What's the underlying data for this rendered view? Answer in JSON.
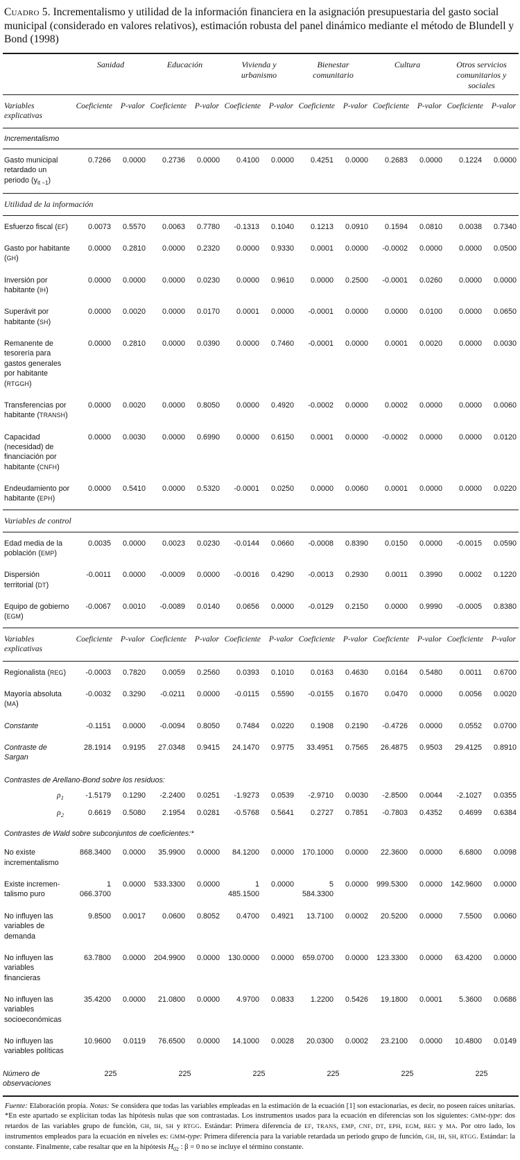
{
  "page": {
    "title_label": "Cuadro 5.",
    "title_text": " Incrementalismo y utilidad de la información financiera en la asignación presupuestaria del gasto social municipal (considerado en valores relativos), estimación robusta del panel dinámico mediante el método de Blundell y Bond (1998)"
  },
  "table": {
    "groups": [
      "Sanidad",
      "Educación",
      "Vivienda y urbanismo",
      "Bienestar comunitario",
      "Cultura",
      "Otros servicios comunitarios y sociales"
    ],
    "col_headers": {
      "stub": "Variables explicativas",
      "coef": "Coeficiente",
      "pval": "P-valor"
    },
    "rows": [
      {
        "type": "section-sans",
        "label": "Incrementalismo"
      },
      {
        "type": "data",
        "label": "Gasto municipal retardado un periodo (y{sub}it −1{/sub})",
        "values": [
          "0.7266",
          "0.0000",
          "0.2736",
          "0.0000",
          "0.4100",
          "0.0000",
          "0.4251",
          "0.0000",
          "0.2683",
          "0.0000",
          "0.1224",
          "0.0000"
        ]
      },
      {
        "type": "section-serif",
        "label": "Utilidad de la información"
      },
      {
        "type": "data",
        "label": "Esfuerzo fiscal ({sc}EF{/sc})",
        "values": [
          "0.0073",
          "0.5570",
          "0.0063",
          "0.7780",
          "-0.1313",
          "0.1040",
          "0.1213",
          "0.0910",
          "0.1594",
          "0.0810",
          "0.0038",
          "0.7340"
        ]
      },
      {
        "type": "data",
        "label": "Gasto por habitante ({sc}GH{/sc})",
        "values": [
          "0.0000",
          "0.2810",
          "0.0000",
          "0.2320",
          "0.0000",
          "0.9330",
          "0.0001",
          "0.0000",
          "-0.0002",
          "0.0000",
          "0.0000",
          "0.0500"
        ]
      },
      {
        "type": "data",
        "label": "Inversión por habitante ({sc}IH{/sc})",
        "values": [
          "0.0000",
          "0.0000",
          "0.0000",
          "0.0230",
          "0.0000",
          "0.9610",
          "0.0000",
          "0.2500",
          "-0.0001",
          "0.0260",
          "0.0000",
          "0.0000"
        ]
      },
      {
        "type": "data",
        "label": "Superávit por habitante ({sc}SH{/sc})",
        "values": [
          "0.0000",
          "0.0020",
          "0.0000",
          "0.0170",
          "0.0001",
          "0.0000",
          "-0.0001",
          "0.0000",
          "0.0000",
          "0.0100",
          "0.0000",
          "0.0650"
        ]
      },
      {
        "type": "data",
        "label": "Remanente de tesorería para gastos generales por habitante ({sc}RTGGH{/sc})",
        "values": [
          "0.0000",
          "0.2810",
          "0.0000",
          "0.0390",
          "0.0000",
          "0.7460",
          "-0.0001",
          "0.0000",
          "0.0001",
          "0.0020",
          "0.0000",
          "0.0030"
        ]
      },
      {
        "type": "data",
        "label": "Transferencias por habitante ({sc}TRANSH{/sc})",
        "values": [
          "0.0000",
          "0.0020",
          "0.0000",
          "0.8050",
          "0.0000",
          "0.4920",
          "-0.0002",
          "0.0000",
          "0.0002",
          "0.0000",
          "0.0000",
          "0.0060"
        ]
      },
      {
        "type": "data",
        "label": "Capacidad (necesidad) de financiación  por habitante ({sc}CNFH{/sc})",
        "values": [
          "0.0000",
          "0.0030",
          "0.0000",
          "0.6990",
          "0.0000",
          "0.6150",
          "0.0001",
          "0.0000",
          "-0.0002",
          "0.0000",
          "0.0000",
          "0.0120"
        ]
      },
      {
        "type": "data",
        "label": "Endeudamiento por habitante ({sc}EPH{/sc})",
        "values": [
          "0.0000",
          "0.5410",
          "0.0000",
          "0.5320",
          "-0.0001",
          "0.0250",
          "0.0000",
          "0.0060",
          "0.0001",
          "0.0000",
          "0.0000",
          "0.0220"
        ]
      },
      {
        "type": "section-serif",
        "label": "Variables de control"
      },
      {
        "type": "data",
        "label": "Edad media de la población ({sc}EMP{/sc})",
        "values": [
          "0.0035",
          "0.0000",
          "0.0023",
          "0.0230",
          "-0.0144",
          "0.0660",
          "-0.0008",
          "0.8390",
          "0.0150",
          "0.0000",
          "-0.0015",
          "0.0590"
        ]
      },
      {
        "type": "data",
        "label": "Dispersión territorial ({sc}DT{/sc})",
        "values": [
          "-0.0011",
          "0.0000",
          "-0.0009",
          "0.0000",
          "-0.0016",
          "0.4290",
          "-0.0013",
          "0.2930",
          "0.0011",
          "0.3990",
          "0.0002",
          "0.1220"
        ]
      },
      {
        "type": "data",
        "label": "Equipo de gobierno ({sc}EGM{/sc})",
        "values": [
          "-0.0067",
          "0.0010",
          "-0.0089",
          "0.0140",
          "0.0656",
          "0.0000",
          "-0.0129",
          "0.2150",
          "0.0000",
          "0.9990",
          "-0.0005",
          "0.8380"
        ]
      },
      {
        "type": "header2"
      },
      {
        "type": "data",
        "label": "Regionalista ({sc}REG{/sc})",
        "values": [
          "-0.0003",
          "0.7820",
          "0.0059",
          "0.2560",
          "0.0393",
          "0.1010",
          "0.0163",
          "0.4630",
          "0.0164",
          "0.5480",
          "0.0011",
          "0.6700"
        ]
      },
      {
        "type": "data",
        "label": "Mayoría absoluta ({sc}MA{/sc})",
        "values": [
          "-0.0032",
          "0.3290",
          "-0.0211",
          "0.0000",
          "-0.0115",
          "0.5590",
          "-0.0155",
          "0.1670",
          "0.0470",
          "0.0000",
          "0.0056",
          "0.0020"
        ]
      },
      {
        "type": "data data-italic",
        "label": "Constante",
        "values": [
          "-0.1151",
          "0.0000",
          "-0.0094",
          "0.8050",
          "0.7484",
          "0.0220",
          "0.1908",
          "0.2190",
          "-0.4726",
          "0.0000",
          "0.0552",
          "0.0700"
        ]
      },
      {
        "type": "data data-italic",
        "label": "Contraste de Sargan",
        "values": [
          "28.1914",
          "0.9195",
          "27.0348",
          "0.9415",
          "24.1470",
          "0.9775",
          "33.4951",
          "0.7565",
          "26.4875",
          "0.9503",
          "29.4125",
          "0.8910"
        ]
      },
      {
        "type": "label-only",
        "label": "Contrastes de Arellano-Bond sobre los residuos:"
      },
      {
        "type": "data data-right",
        "label": "ρ{sub}1{/sub}",
        "values": [
          "-1.5179",
          "0.1290",
          "-2.2400",
          "0.0251",
          "-1.9273",
          "0.0539",
          "-2.9710",
          "0.0030",
          "-2.8500",
          "0.0044",
          "-2.1027",
          "0.0355"
        ]
      },
      {
        "type": "data data-right",
        "label": "ρ{sub}2{/sub}",
        "values": [
          "0.6619",
          "0.5080",
          "2.1954",
          "0.0281",
          "-0.5768",
          "0.5641",
          "0.2727",
          "0.7851",
          "-0.7803",
          "0.4352",
          "0.4699",
          "0.6384"
        ]
      },
      {
        "type": "label-only",
        "label": "Contrastes de Wald sobre subconjuntos de coeficientes:*"
      },
      {
        "type": "data",
        "label": "No existe incrementalismo",
        "values": [
          "868.3400",
          "0.0000",
          "35.9900",
          "0.0000",
          "84.1200",
          "0.0000",
          "170.1000",
          "0.0000",
          "22.3600",
          "0.0000",
          "6.6800",
          "0.0098"
        ]
      },
      {
        "type": "data",
        "label": "Existe incremen­talismo puro",
        "values": [
          "1 066.3700",
          "0.0000",
          "533.3300",
          "0.0000",
          "1 485.1500",
          "0.0000",
          "5 584.3300",
          "0.0000",
          "999.5300",
          "0.0000",
          "142.9600",
          "0.0000"
        ]
      },
      {
        "type": "data",
        "label": "No influyen las variables de demanda",
        "values": [
          "9.8500",
          "0.0017",
          "0.0600",
          "0.8052",
          "0.4700",
          "0.4921",
          "13.7100",
          "0.0002",
          "20.5200",
          "0.0000",
          "7.5500",
          "0.0060"
        ]
      },
      {
        "type": "data",
        "label": "No influyen las variables financieras",
        "values": [
          "63.7800",
          "0.0000",
          "204.9900",
          "0.0000",
          "130.0000",
          "0.0000",
          "659.0700",
          "0.0000",
          "123.3300",
          "0.0000",
          "63.4200",
          "0.0000"
        ]
      },
      {
        "type": "data",
        "label": "No influyen las variables socioeconómicas",
        "values": [
          "35.4200",
          "0.0000",
          "21.0800",
          "0.0000",
          "4.9700",
          "0.0833",
          "1.2200",
          "0.5426",
          "19.1800",
          "0.0001",
          "5.3600",
          "0.0686"
        ]
      },
      {
        "type": "data",
        "label": "No influyen las variables políticas",
        "values": [
          "10.9600",
          "0.0119",
          "76.6500",
          "0.0000",
          "14.1000",
          "0.0028",
          "20.0300",
          "0.0002",
          "23.2100",
          "0.0000",
          "10.4800",
          "0.0149"
        ]
      },
      {
        "type": "obs",
        "label": "Número de observaciones",
        "values": [
          "225",
          "225",
          "225",
          "225",
          "225",
          "225"
        ]
      }
    ]
  },
  "footnote": "{i}Fuente:{/i} Elaboración propia. {i}Notas:{/i} Se considera que todas las variables empleadas en la estimación de la ecuación [1] son estacionarias, es decir, no poseen raíces unitarias. *En este apartado se explicitan todas las hipótesis nulas que son contrastadas. Los instrumentos usados para la ecuación en diferencias son los siguientes: {sc}GMM{/sc}-{i}type{/i}: dos retardos de las variables grupo de función, {sc}GH{/sc}, {sc}IH{/sc}, {sc}SH{/sc} y {sc}RTGG{/sc}.  Estándar: Primera diferencia de {sc}EF{/sc}, {sc}TRANS{/sc}, {sc}EMP{/sc}, {sc}CNF{/sc}, {sc}DT{/sc}, {sc}EPH{/sc}, {sc}EGM{/sc}, {sc}REG{/sc} y {sc}MA{/sc}. Por otro lado, los instrumentos empleados para la ecuación en niveles es: {sc}GMM{/sc}-{i}type{/i}: Primera diferencia para la variable retardada un periodo grupo de función, {sc}GH{/sc}, {sc}IH{/sc}, {sc}SH{/sc}, {sc}RTGG{/sc}. Estándar: la constante. Finalmente, cabe resaltar que en la hipótesis {i}H{/i}{sub}02{/sub} : β = 0 no se incluye el término constante."
}
